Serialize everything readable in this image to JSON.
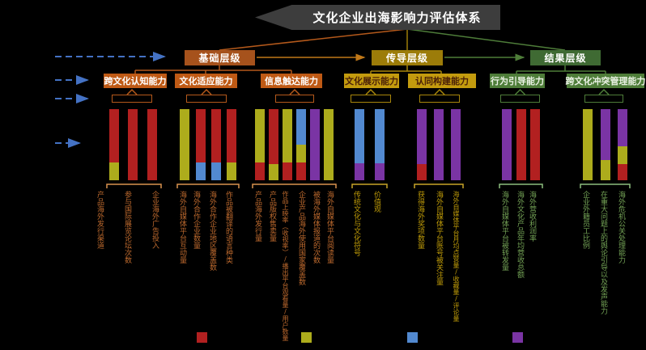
{
  "title": "文化企业出海影响力评估体系",
  "layers": [
    {
      "label": "基础层级",
      "color": "#A6521C"
    },
    {
      "label": "传导层级",
      "color": "#9C7C09"
    },
    {
      "label": "结果层级",
      "color": "#3F6A33"
    }
  ],
  "palette": {
    "red": "#B22020",
    "yellow": "#ADAC1C",
    "blue": "#5289D0",
    "purple": "#7A34A4"
  },
  "themes": {
    "orange": {
      "box": "#BF5A15",
      "text": "#FFFFFF",
      "line": "#B4591B",
      "bracket": "#D9924F",
      "label": "#BE6A2E"
    },
    "gold": {
      "box": "#C39B0E",
      "text": "#4A2008",
      "line": "#A8860B",
      "bracket": "#C7A429",
      "label": "#C09C08"
    },
    "green": {
      "box": "#4E7D39",
      "text": "#EAF2E4",
      "line": "#4E7D39",
      "bracket": "#8CBE7E",
      "label": "#74A356"
    }
  },
  "groups": [
    {
      "capability": "跨文化认知能力",
      "layer": "基础层级",
      "theme": "orange",
      "indicators": [
        "产品海外发行渠道",
        "参与国际展览论坛次数",
        "企业海外广告投入"
      ],
      "bars": [
        [
          {
            "color": "red",
            "pct": 75
          },
          {
            "color": "yellow",
            "pct": 25
          }
        ],
        [
          {
            "color": "red",
            "pct": 100
          }
        ],
        [
          {
            "color": "red",
            "pct": 100
          }
        ]
      ]
    },
    {
      "capability": "文化适应能力",
      "layer": "基础层级",
      "theme": "orange",
      "indicators": [
        "海外自媒体平台互动量",
        "海外合作企业数量",
        "海外合作企业地区覆盖数",
        "作品被翻译的语言种类"
      ],
      "bars": [
        [
          {
            "color": "yellow",
            "pct": 100
          }
        ],
        [
          {
            "color": "red",
            "pct": 75
          },
          {
            "color": "blue",
            "pct": 25
          }
        ],
        [
          {
            "color": "red",
            "pct": 75
          },
          {
            "color": "blue",
            "pct": 25
          }
        ],
        [
          {
            "color": "red",
            "pct": 75
          },
          {
            "color": "yellow",
            "pct": 25
          }
        ]
      ]
    },
    {
      "capability": "信息触达能力",
      "layer": "基础层级",
      "theme": "orange",
      "indicators": [
        "产品海外发行量",
        "产品版权售卖量",
        "作品上映率（收视率）/播出平台观看量/用户数量",
        "企业产品海外使用国家覆盖数",
        "被海外媒体报道的次数",
        "海外自媒体平台阅读量"
      ],
      "bars": [
        [
          {
            "color": "yellow",
            "pct": 75
          },
          {
            "color": "red",
            "pct": 25
          }
        ],
        [
          {
            "color": "red",
            "pct": 77
          },
          {
            "color": "yellow",
            "pct": 23
          }
        ],
        [
          {
            "color": "yellow",
            "pct": 75
          },
          {
            "color": "red",
            "pct": 25
          }
        ],
        [
          {
            "color": "blue",
            "pct": 50
          },
          {
            "color": "yellow",
            "pct": 25
          },
          {
            "color": "red",
            "pct": 25
          }
        ],
        [
          {
            "color": "purple",
            "pct": 100
          }
        ],
        [
          {
            "color": "yellow",
            "pct": 100
          }
        ]
      ]
    },
    {
      "capability": "文化展示能力",
      "layer": "传导层级",
      "theme": "gold",
      "indicators": [
        "传统文化与文化符号",
        "价值观"
      ],
      "bars": [
        [
          {
            "color": "blue",
            "pct": 76
          },
          {
            "color": "purple",
            "pct": 24
          }
        ],
        [
          {
            "color": "blue",
            "pct": 76
          },
          {
            "color": "purple",
            "pct": 24
          }
        ]
      ]
    },
    {
      "capability": "认同构建能力",
      "layer": "传导层级",
      "theme": "gold",
      "indicators": [
        "获得海外奖项数量",
        "海外自媒体平台账号被关注量",
        "海外自媒体平台月均点赞量/收藏量/评论量"
      ],
      "bars": [
        [
          {
            "color": "purple",
            "pct": 77
          },
          {
            "color": "red",
            "pct": 23
          }
        ],
        [
          {
            "color": "purple",
            "pct": 100
          }
        ],
        [
          {
            "color": "purple",
            "pct": 100
          }
        ]
      ]
    },
    {
      "capability": "行为引导能力",
      "layer": "结果层级",
      "theme": "green",
      "indicators": [
        "海外自媒体平台被转发量",
        "海外文化产品年均营收总额",
        "海外营收利润率"
      ],
      "bars": [
        [
          {
            "color": "purple",
            "pct": 100
          }
        ],
        [
          {
            "color": "red",
            "pct": 100
          }
        ],
        [
          {
            "color": "red",
            "pct": 100
          }
        ]
      ]
    },
    {
      "capability": "跨文化冲突管理能力",
      "layer": "结果层级",
      "theme": "green",
      "indicators": [
        "企业外籍员工比例",
        "在重大问题上的舆论引导以及发声能力",
        "海外危机公关处理能力"
      ],
      "bars": [
        [
          {
            "color": "yellow",
            "pct": 100
          }
        ],
        [
          {
            "color": "purple",
            "pct": 72
          },
          {
            "color": "yellow",
            "pct": 28
          }
        ],
        [
          {
            "color": "purple",
            "pct": 52
          },
          {
            "color": "yellow",
            "pct": 25
          },
          {
            "color": "red",
            "pct": 23
          }
        ]
      ]
    }
  ],
  "legend": {
    "swatches": [
      "red",
      "yellow",
      "blue",
      "purple"
    ]
  }
}
